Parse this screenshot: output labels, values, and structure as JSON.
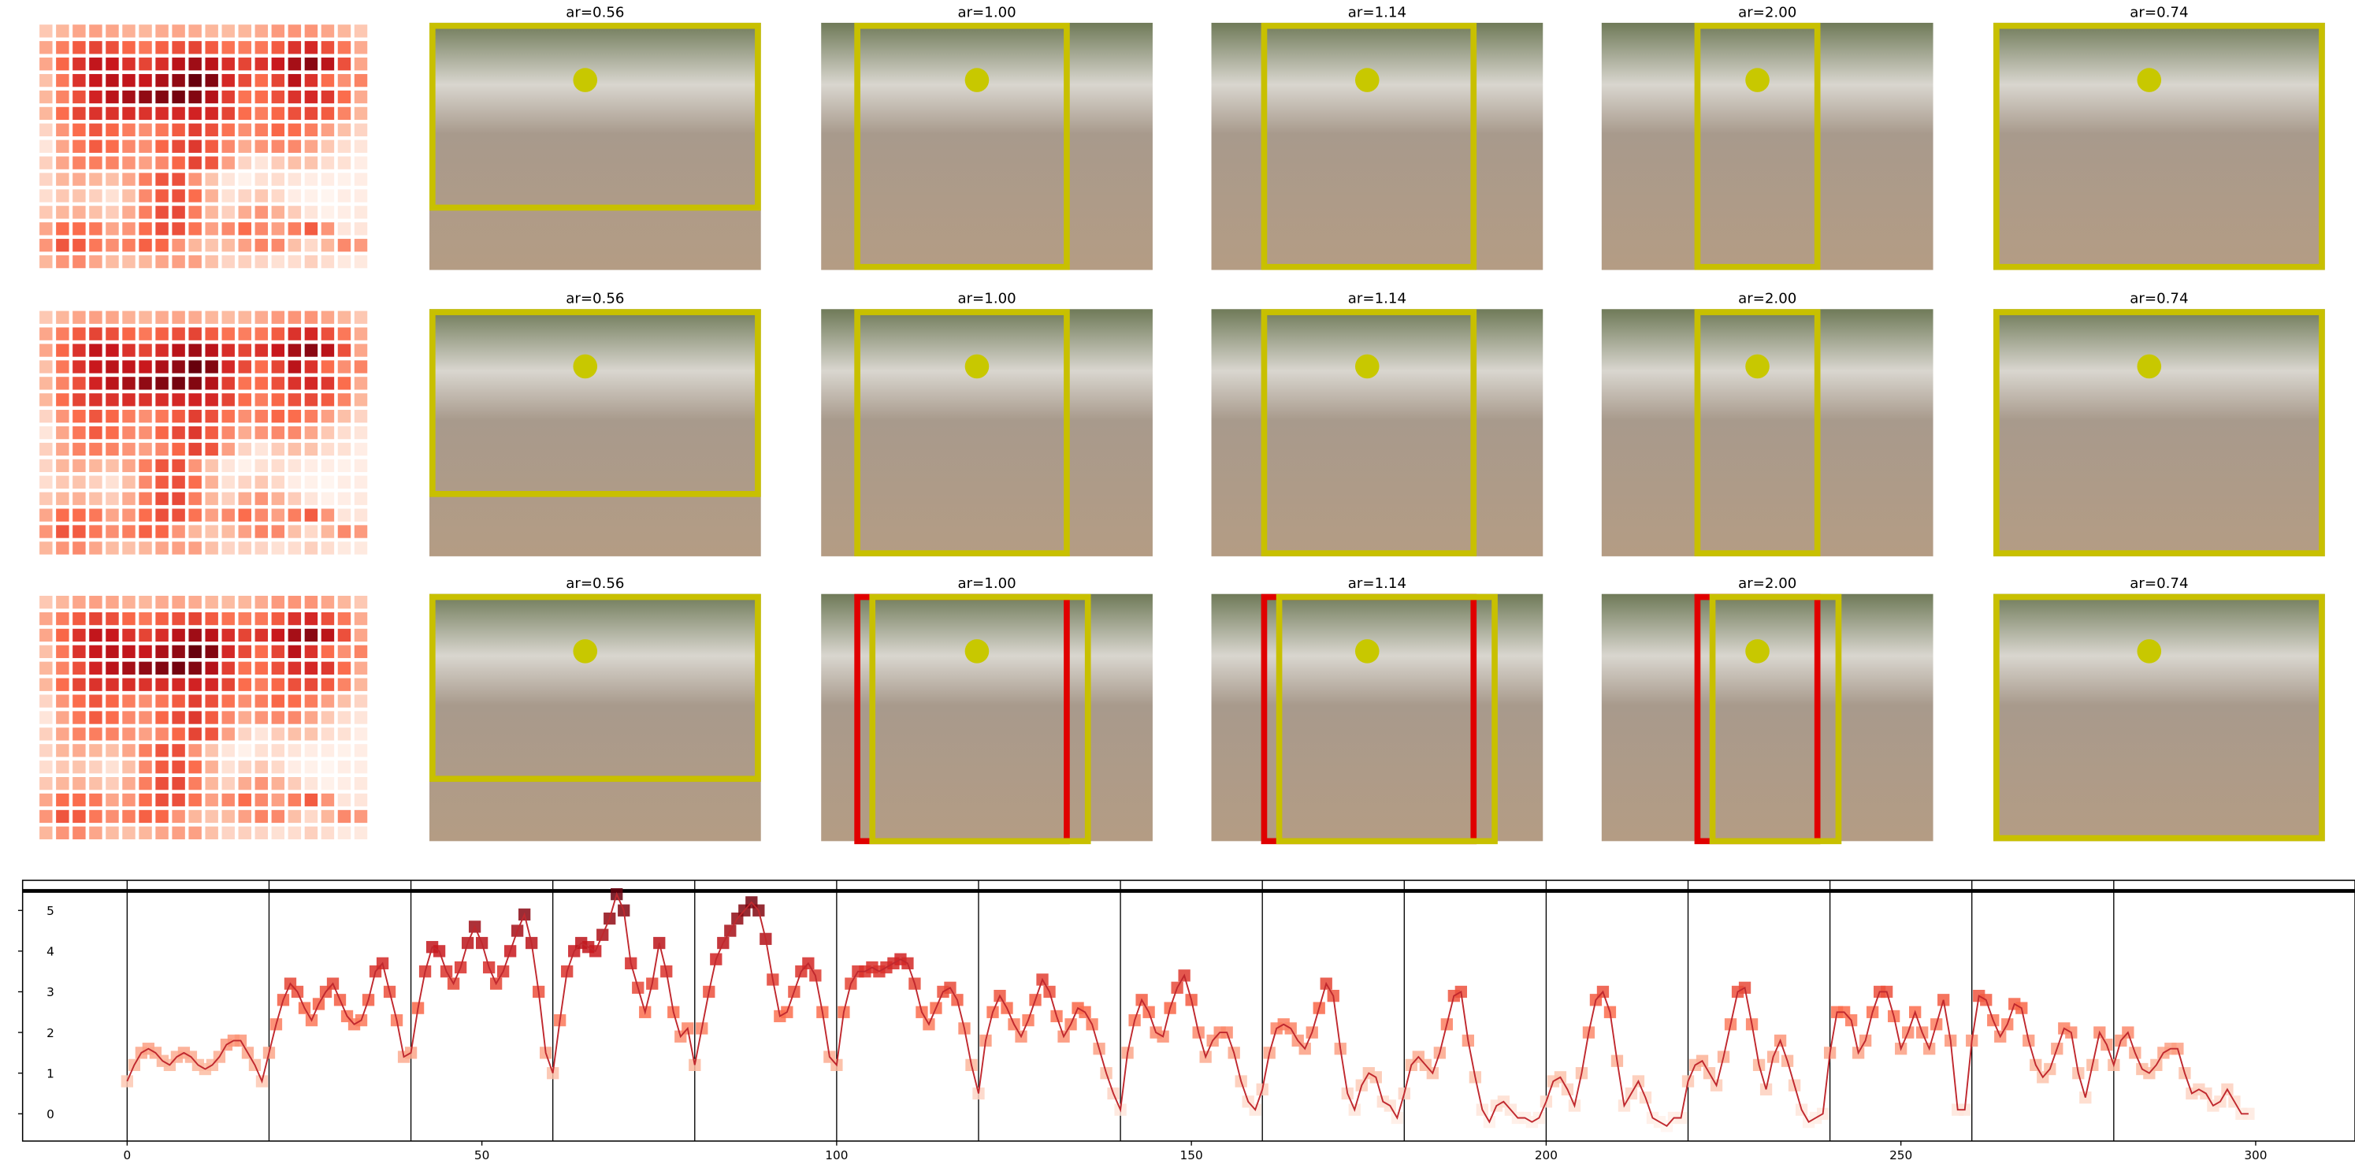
{
  "chart_data": {
    "type": "line",
    "panel_titles": [
      [
        "ar=0.56",
        "ar=1.00",
        "ar=1.14",
        "ar=2.00",
        "ar=0.74"
      ],
      [
        "ar=0.56",
        "ar=1.00",
        "ar=1.14",
        "ar=2.00",
        "ar=0.74"
      ],
      [
        "ar=0.56",
        "ar=1.00",
        "ar=1.14",
        "ar=2.00",
        "ar=0.74"
      ]
    ],
    "values": [
      0.8,
      1.2,
      1.5,
      1.6,
      1.5,
      1.3,
      1.2,
      1.4,
      1.5,
      1.4,
      1.2,
      1.1,
      1.2,
      1.4,
      1.7,
      1.8,
      1.8,
      1.5,
      1.2,
      0.8,
      1.5,
      2.2,
      2.8,
      3.2,
      3.0,
      2.6,
      2.3,
      2.7,
      3.0,
      3.2,
      2.8,
      2.4,
      2.2,
      2.3,
      2.8,
      3.5,
      3.7,
      3.0,
      2.3,
      1.4,
      1.5,
      2.6,
      3.5,
      4.1,
      4.0,
      3.5,
      3.2,
      3.6,
      4.2,
      4.6,
      4.2,
      3.6,
      3.2,
      3.5,
      4.0,
      4.5,
      4.9,
      4.2,
      3.0,
      1.5,
      1.0,
      2.3,
      3.5,
      4.0,
      4.2,
      4.1,
      4.0,
      4.4,
      4.8,
      5.4,
      5.0,
      3.7,
      3.1,
      2.5,
      3.2,
      4.2,
      3.5,
      2.5,
      1.9,
      2.1,
      1.2,
      2.1,
      3.0,
      3.8,
      4.2,
      4.5,
      4.8,
      5.0,
      5.2,
      5.0,
      4.3,
      3.3,
      2.4,
      2.5,
      3.0,
      3.5,
      3.7,
      3.4,
      2.5,
      1.4,
      1.2,
      2.5,
      3.2,
      3.5,
      3.5,
      3.6,
      3.5,
      3.6,
      3.7,
      3.8,
      3.7,
      3.2,
      2.5,
      2.2,
      2.6,
      3.0,
      3.1,
      2.8,
      2.1,
      1.2,
      0.5,
      1.8,
      2.5,
      2.9,
      2.6,
      2.2,
      1.9,
      2.3,
      2.8,
      3.3,
      3.0,
      2.4,
      1.9,
      2.2,
      2.6,
      2.5,
      2.2,
      1.6,
      1.0,
      0.5,
      0.1,
      1.5,
      2.3,
      2.8,
      2.5,
      2.0,
      1.9,
      2.6,
      3.1,
      3.4,
      2.8,
      2.0,
      1.4,
      1.8,
      2.0,
      2.0,
      1.5,
      0.8,
      0.3,
      0.1,
      0.6,
      1.5,
      2.1,
      2.2,
      2.1,
      1.8,
      1.6,
      2.0,
      2.6,
      3.2,
      2.9,
      1.6,
      0.5,
      0.1,
      0.7,
      1.0,
      0.9,
      0.3,
      0.2,
      -0.1,
      0.5,
      1.2,
      1.4,
      1.2,
      1.0,
      1.5,
      2.2,
      2.9,
      3.0,
      1.8,
      0.9,
      0.1,
      -0.2,
      0.2,
      0.3,
      0.1,
      -0.1,
      -0.1,
      -0.2,
      -0.1,
      0.3,
      0.8,
      0.9,
      0.6,
      0.2,
      1.0,
      2.0,
      2.8,
      3.0,
      2.5,
      1.3,
      0.2,
      0.5,
      0.8,
      0.4,
      -0.1,
      -0.2,
      -0.3,
      -0.1,
      -0.1,
      0.8,
      1.2,
      1.3,
      1.0,
      0.7,
      1.4,
      2.2,
      3.0,
      3.1,
      2.2,
      1.2,
      0.6,
      1.4,
      1.8,
      1.3,
      0.7,
      0.1,
      -0.2,
      -0.1,
      0.0,
      1.5,
      2.5,
      2.5,
      2.3,
      1.5,
      1.8,
      2.5,
      3.0,
      3.0,
      2.4,
      1.6,
      2.0,
      2.5,
      2.0,
      1.6,
      2.2,
      2.8,
      1.8,
      0.1,
      0.1,
      1.8,
      2.9,
      2.8,
      2.3,
      1.9,
      2.2,
      2.7,
      2.6,
      1.8,
      1.2,
      0.9,
      1.1,
      1.6,
      2.1,
      2.0,
      1.0,
      0.4,
      1.2,
      2.0,
      1.7,
      1.2,
      1.8,
      2.0,
      1.5,
      1.1,
      1.0,
      1.2,
      1.5,
      1.6,
      1.6,
      1.0,
      0.5,
      0.6,
      0.5,
      0.2,
      0.3,
      0.6,
      0.3,
      0.0,
      0.0
    ],
    "color": "#c0282e",
    "colormap": [
      "#fff5f0",
      "#fcbba1",
      "#fb6a4a",
      "#cb181d",
      "#67000d"
    ],
    "xlim": [
      -9,
      314
    ],
    "ylim": [
      -0.67,
      5.74
    ],
    "xticks": [
      0,
      50,
      100,
      150,
      200,
      250,
      300
    ],
    "yticks": [
      0,
      1,
      2,
      3,
      4,
      5
    ],
    "vlines": [
      0,
      20,
      40,
      60,
      80,
      100,
      120,
      140,
      160,
      180,
      200,
      220,
      240,
      260,
      280
    ],
    "hline": 5.48
  }
}
